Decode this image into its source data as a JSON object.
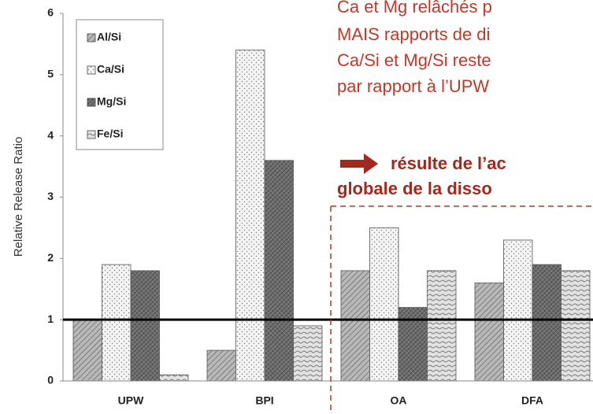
{
  "chart_data": {
    "type": "bar",
    "y_label": "Relative Release Ratio",
    "categories": [
      "UPW",
      "BPI",
      "OA",
      "DFA"
    ],
    "series": [
      {
        "name": "Al/Si",
        "color": "#b8b8b8",
        "values": [
          1.0,
          0.5,
          1.8,
          1.6
        ]
      },
      {
        "name": "Ca/Si",
        "color": "#f4f4f4",
        "values": [
          1.9,
          5.4,
          2.5,
          2.3
        ]
      },
      {
        "name": "Mg/Si",
        "color": "#6e6e6e",
        "values": [
          1.8,
          3.6,
          1.2,
          1.9
        ]
      },
      {
        "name": "Fe/Si",
        "color": "#e2e2e2",
        "values": [
          0.1,
          0.9,
          1.8,
          1.8
        ]
      }
    ],
    "ylim": [
      0,
      6
    ],
    "yticks": [
      0,
      1,
      2,
      3,
      4,
      5,
      6
    ],
    "reference_line": 1,
    "annotations": [
      "Ca et Mg relâchés p",
      "MAIS rapports de di",
      "Ca/Si et Mg/Si reste",
      "par rapport à l’UPW",
      "résulte de l’ac",
      "globale de la disso"
    ]
  }
}
